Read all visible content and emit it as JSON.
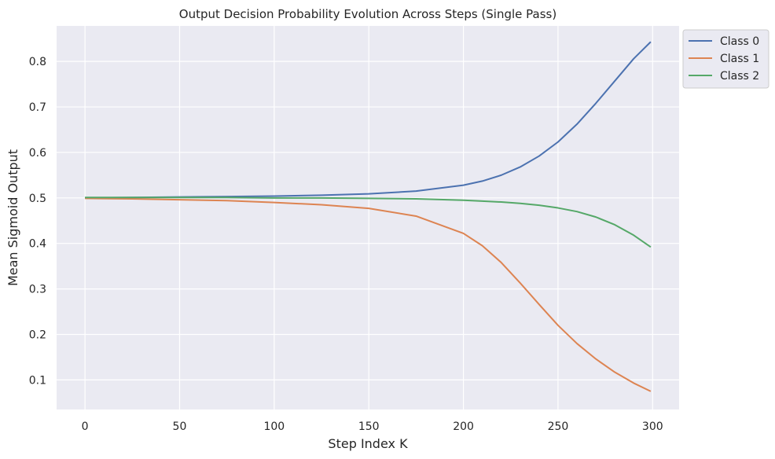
{
  "chart_data": {
    "type": "line",
    "title": "Output Decision Probability Evolution Across Steps (Single Pass)",
    "xlabel": "Step Index K",
    "ylabel": "Mean Sigmoid Output",
    "xlim": [
      -15,
      314
    ],
    "ylim": [
      0.035,
      0.878
    ],
    "xticks": [
      0,
      50,
      100,
      150,
      200,
      250,
      300
    ],
    "yticks": [
      0.1,
      0.2,
      0.3,
      0.4,
      0.5,
      0.6,
      0.7,
      0.8
    ],
    "grid": true,
    "legend_position": "outside-top-right",
    "x": [
      0,
      25,
      50,
      75,
      100,
      125,
      150,
      175,
      200,
      210,
      220,
      230,
      240,
      250,
      260,
      270,
      280,
      290,
      299
    ],
    "series": [
      {
        "name": "Class 0",
        "color": "#4c72b0",
        "values": [
          0.5,
          0.501,
          0.502,
          0.503,
          0.504,
          0.506,
          0.509,
          0.515,
          0.528,
          0.537,
          0.55,
          0.568,
          0.592,
          0.623,
          0.662,
          0.708,
          0.757,
          0.806,
          0.843
        ]
      },
      {
        "name": "Class 1",
        "color": "#dd8452",
        "values": [
          0.499,
          0.498,
          0.496,
          0.494,
          0.49,
          0.485,
          0.477,
          0.46,
          0.422,
          0.395,
          0.358,
          0.313,
          0.266,
          0.22,
          0.18,
          0.146,
          0.117,
          0.093,
          0.075
        ]
      },
      {
        "name": "Class 2",
        "color": "#55a868",
        "values": [
          0.501,
          0.501,
          0.501,
          0.501,
          0.5,
          0.5,
          0.499,
          0.498,
          0.495,
          0.493,
          0.491,
          0.488,
          0.484,
          0.478,
          0.47,
          0.458,
          0.441,
          0.418,
          0.392
        ]
      }
    ]
  }
}
